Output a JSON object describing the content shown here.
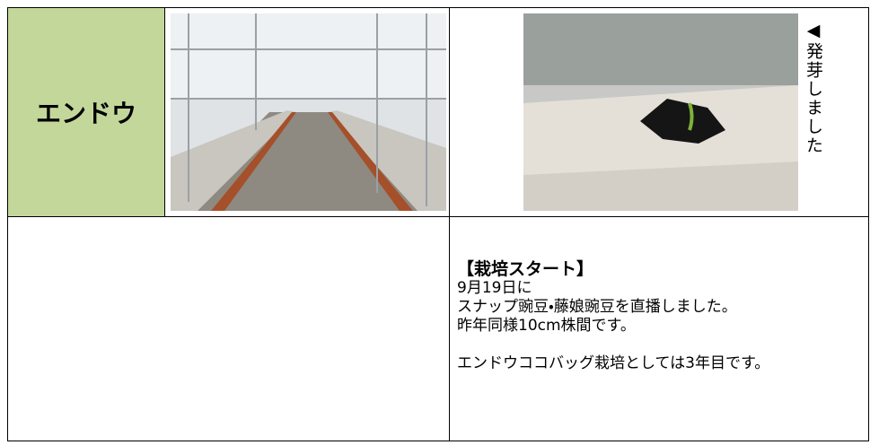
{
  "header_cell": "エンドウ",
  "photo_caption": "◀発芽しました",
  "notes": {
    "heading": "【栽培スタート】",
    "lines": [
      "9月19日に",
      "スナップ豌豆・藤娘豌豆を直播しました。",
      "昨年同様10cm株間です。",
      "エンドウココバッグ栽培としては3年目です。"
    ]
  }
}
